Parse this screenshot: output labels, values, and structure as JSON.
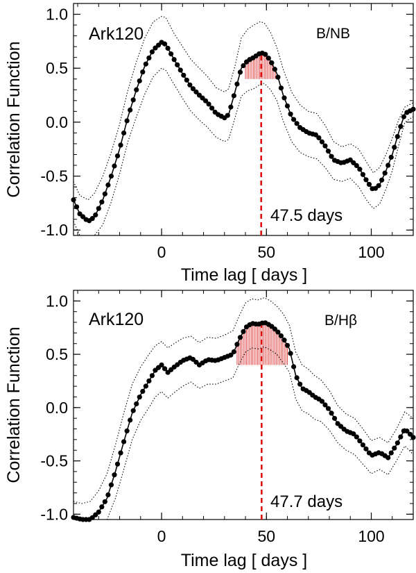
{
  "shared": {
    "ylabel": "Correlation Function",
    "xlabel": "Time lag  [ days ]"
  },
  "chart_data": [
    {
      "type": "line",
      "object": "Ark120",
      "ratio": "B/NB",
      "lag_label": "47.5 days",
      "centroid_lag": 47.5,
      "peak_region": [
        40,
        57
      ],
      "peak_threshold": 0.4,
      "xlim": [
        -42,
        120
      ],
      "ylim": [
        -1.05,
        1.1
      ],
      "xticks": [
        0,
        50,
        100
      ],
      "xtick_labels": [
        "0",
        "50",
        "100"
      ],
      "yticks": [
        -1.0,
        -0.5,
        0.0,
        0.5,
        1.0
      ],
      "ytick_labels": [
        "-1.0",
        "-0.5",
        "0.0",
        "0.5",
        "1.0"
      ],
      "series": [
        {
          "style": "solid-dots",
          "x": [
            -42,
            -39,
            -35,
            -32,
            -28,
            -24,
            -20,
            -16,
            -12,
            -8,
            -4,
            0,
            2,
            6,
            10,
            14,
            18,
            22,
            26,
            30,
            32,
            35,
            38,
            41,
            44,
            47,
            49,
            52,
            55,
            58,
            62,
            66,
            70,
            74,
            78,
            82,
            86,
            90,
            94,
            98,
            101,
            104,
            107,
            110,
            113,
            116,
            120
          ],
          "y": [
            -0.72,
            -0.85,
            -0.92,
            -0.88,
            -0.72,
            -0.5,
            -0.25,
            0.05,
            0.3,
            0.52,
            0.67,
            0.74,
            0.72,
            0.58,
            0.45,
            0.33,
            0.25,
            0.18,
            0.08,
            0.04,
            0.07,
            0.28,
            0.5,
            0.57,
            0.6,
            0.64,
            0.64,
            0.57,
            0.45,
            0.25,
            0.05,
            -0.05,
            -0.1,
            -0.12,
            -0.22,
            -0.35,
            -0.38,
            -0.35,
            -0.42,
            -0.55,
            -0.63,
            -0.58,
            -0.45,
            -0.3,
            -0.1,
            0.08,
            0.12
          ]
        },
        {
          "style": "dotted-upper",
          "x": [
            -42,
            -39,
            -35,
            -32,
            -28,
            -24,
            -20,
            -16,
            -12,
            -8,
            -4,
            0,
            2,
            6,
            10,
            14,
            18,
            22,
            26,
            30,
            32,
            35,
            38,
            41,
            44,
            47,
            49,
            52,
            55,
            58,
            62,
            66,
            70,
            74,
            78,
            82,
            86,
            90,
            94,
            98,
            101,
            104,
            107,
            110,
            113,
            116,
            120
          ],
          "y": [
            -0.55,
            -0.68,
            -0.72,
            -0.66,
            -0.5,
            -0.28,
            -0.02,
            0.3,
            0.56,
            0.78,
            0.93,
            0.98,
            0.97,
            0.82,
            0.7,
            0.58,
            0.5,
            0.42,
            0.32,
            0.28,
            0.31,
            0.52,
            0.78,
            0.86,
            0.9,
            0.93,
            0.92,
            0.83,
            0.69,
            0.49,
            0.28,
            0.16,
            0.1,
            0.08,
            -0.03,
            -0.18,
            -0.23,
            -0.2,
            -0.25,
            -0.38,
            -0.47,
            -0.42,
            -0.3,
            -0.15,
            0.02,
            0.14,
            0.18
          ]
        },
        {
          "style": "dotted-lower",
          "x": [
            -42,
            -39,
            -35,
            -32,
            -28,
            -24,
            -20,
            -16,
            -12,
            -8,
            -4,
            0,
            2,
            6,
            10,
            14,
            18,
            22,
            26,
            30,
            32,
            35,
            38,
            41,
            44,
            47,
            49,
            52,
            55,
            58,
            62,
            66,
            70,
            74,
            78,
            82,
            86,
            90,
            94,
            98,
            101,
            104,
            107,
            110,
            113,
            116,
            120
          ],
          "y": [
            -0.92,
            -1.05,
            -1.05,
            -1.05,
            -0.95,
            -0.74,
            -0.48,
            -0.18,
            0.05,
            0.26,
            0.42,
            0.5,
            0.48,
            0.35,
            0.22,
            0.1,
            0.02,
            -0.05,
            -0.14,
            -0.18,
            -0.16,
            0.04,
            0.24,
            0.29,
            0.31,
            0.35,
            0.36,
            0.3,
            0.2,
            0.01,
            -0.18,
            -0.28,
            -0.32,
            -0.34,
            -0.42,
            -0.53,
            -0.55,
            -0.52,
            -0.6,
            -0.73,
            -0.8,
            -0.76,
            -0.62,
            -0.45,
            -0.22,
            0.0,
            0.05
          ]
        }
      ]
    },
    {
      "type": "line",
      "object": "Ark120",
      "ratio": "B/Hβ",
      "lag_label": "47.7 days",
      "centroid_lag": 47.7,
      "peak_region": [
        36,
        60
      ],
      "peak_threshold": 0.4,
      "xlim": [
        -42,
        120
      ],
      "ylim": [
        -1.05,
        1.1
      ],
      "xticks": [
        0,
        50,
        100
      ],
      "xtick_labels": [
        "0",
        "50",
        "100"
      ],
      "yticks": [
        -1.0,
        -0.5,
        0.0,
        0.5,
        1.0
      ],
      "ytick_labels": [
        "-1.0",
        "-0.5",
        "0.0",
        "0.5",
        "1.0"
      ],
      "series": [
        {
          "style": "solid-dots",
          "x": [
            -42,
            -38,
            -34,
            -30,
            -26,
            -22,
            -18,
            -14,
            -10,
            -6,
            -3,
            0,
            3,
            6,
            10,
            14,
            18,
            22,
            26,
            30,
            34,
            37,
            40,
            43,
            46,
            49,
            52,
            55,
            58,
            61,
            64,
            67,
            70,
            73,
            76,
            80,
            84,
            88,
            92,
            96,
            100,
            104,
            108,
            112,
            116,
            120
          ],
          "y": [
            -1.03,
            -1.05,
            -1.05,
            -0.98,
            -0.85,
            -0.6,
            -0.32,
            -0.05,
            0.12,
            0.25,
            0.35,
            0.4,
            0.33,
            0.38,
            0.44,
            0.47,
            0.4,
            0.45,
            0.44,
            0.47,
            0.5,
            0.64,
            0.75,
            0.79,
            0.78,
            0.8,
            0.77,
            0.72,
            0.65,
            0.55,
            0.3,
            0.18,
            0.15,
            0.1,
            0.07,
            -0.02,
            -0.15,
            -0.22,
            -0.25,
            -0.35,
            -0.45,
            -0.42,
            -0.47,
            -0.35,
            -0.2,
            -0.28
          ]
        },
        {
          "style": "dotted-upper",
          "x": [
            -42,
            -38,
            -34,
            -30,
            -26,
            -22,
            -18,
            -14,
            -10,
            -6,
            -3,
            0,
            3,
            6,
            10,
            14,
            18,
            22,
            26,
            30,
            34,
            37,
            40,
            43,
            46,
            49,
            52,
            55,
            58,
            61,
            64,
            67,
            70,
            73,
            76,
            80,
            84,
            88,
            92,
            96,
            100,
            104,
            108,
            112,
            116,
            120
          ],
          "y": [
            -0.88,
            -0.9,
            -0.88,
            -0.78,
            -0.62,
            -0.35,
            -0.05,
            0.22,
            0.38,
            0.5,
            0.58,
            0.62,
            0.56,
            0.6,
            0.65,
            0.67,
            0.61,
            0.66,
            0.65,
            0.68,
            0.72,
            0.86,
            0.98,
            1.02,
            1.01,
            1.03,
            1.0,
            0.95,
            0.88,
            0.77,
            0.52,
            0.4,
            0.36,
            0.3,
            0.26,
            0.16,
            0.02,
            -0.06,
            -0.1,
            -0.2,
            -0.31,
            -0.28,
            -0.33,
            -0.2,
            -0.04,
            -0.1
          ]
        },
        {
          "style": "dotted-lower",
          "x": [
            -42,
            -38,
            -34,
            -30,
            -26,
            -22,
            -18,
            -14,
            -10,
            -6,
            -3,
            0,
            3,
            6,
            10,
            14,
            18,
            22,
            26,
            30,
            34,
            37,
            40,
            43,
            46,
            49,
            52,
            55,
            58,
            61,
            64,
            67,
            70,
            73,
            76,
            80,
            84,
            88,
            92,
            96,
            100,
            104,
            108,
            112,
            116,
            120
          ],
          "y": [
            -1.05,
            -1.05,
            -1.05,
            -1.05,
            -1.05,
            -0.85,
            -0.58,
            -0.3,
            -0.12,
            0.0,
            0.1,
            0.15,
            0.09,
            0.14,
            0.2,
            0.24,
            0.18,
            0.22,
            0.22,
            0.25,
            0.28,
            0.41,
            0.52,
            0.56,
            0.55,
            0.57,
            0.54,
            0.5,
            0.42,
            0.33,
            0.08,
            -0.03,
            -0.06,
            -0.11,
            -0.13,
            -0.21,
            -0.33,
            -0.4,
            -0.44,
            -0.53,
            -0.62,
            -0.58,
            -0.63,
            -0.5,
            -0.36,
            -0.44
          ]
        }
      ]
    }
  ]
}
